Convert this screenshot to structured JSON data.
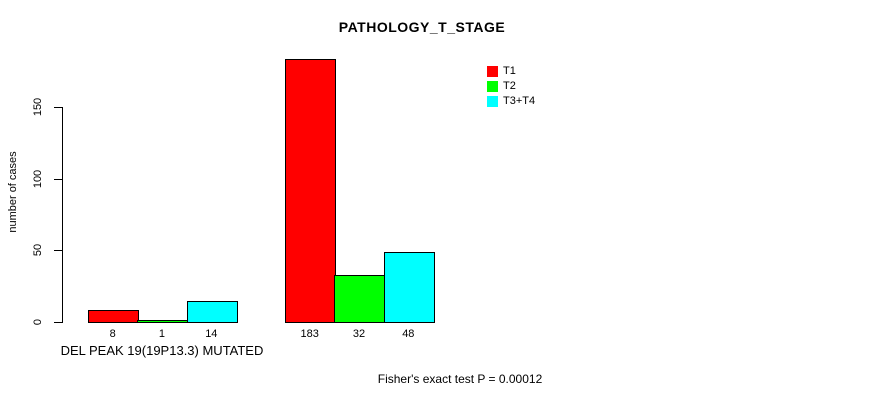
{
  "chart_data": {
    "type": "bar",
    "title": "PATHOLOGY_T_STAGE",
    "ylabel": "number of cases",
    "ylim": [
      0,
      150
    ],
    "yticks": [
      0,
      50,
      100,
      150
    ],
    "grid": false,
    "legend_position": "top-right",
    "series": [
      {
        "name": "T1",
        "color": "#FF0000"
      },
      {
        "name": "T2",
        "color": "#00FF00"
      },
      {
        "name": "T3+T4",
        "color": "#00FFFF"
      }
    ],
    "groups": [
      {
        "label": "DEL PEAK 19(19P13.3) MUTATED",
        "values": [
          8,
          1,
          14
        ]
      },
      {
        "label": "",
        "values": [
          183,
          32,
          48
        ]
      }
    ],
    "annotation": "Fisher's exact test P = 0.00012"
  }
}
